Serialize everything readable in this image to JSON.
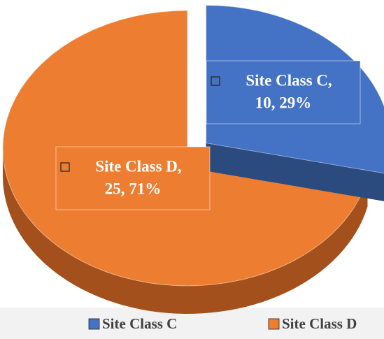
{
  "chart_data": {
    "type": "pie",
    "categories": [
      "Site Class C",
      "Site Class D"
    ],
    "values": [
      10,
      25
    ],
    "data_labels": [
      [
        "Site Class C,",
        "10, 29%"
      ],
      [
        "Site Class D,",
        "25, 71%"
      ]
    ],
    "colors": [
      "#4472c4",
      "#ed7d31"
    ],
    "side_colors": [
      "#2b4a7e",
      "#a4501c"
    ],
    "exploded": [
      true,
      false
    ],
    "legend": "bottom"
  }
}
